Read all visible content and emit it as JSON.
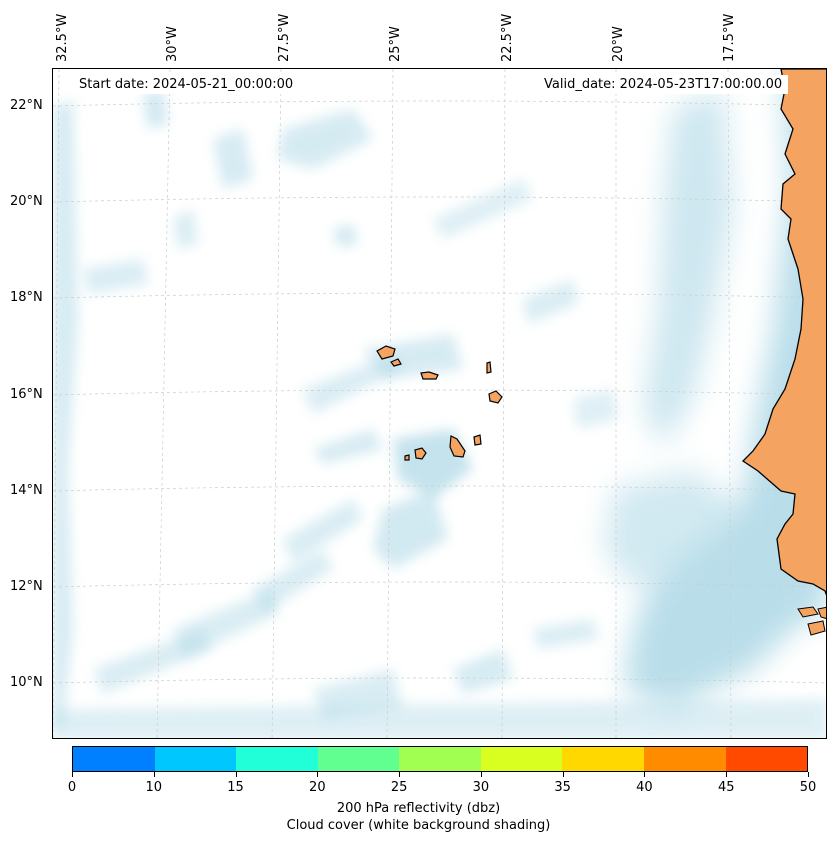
{
  "map": {
    "start_date_label": "Start date: 2024-05-21_00:00:00",
    "valid_date_label": "Valid_date: 2024-05-23T17:00:00.00",
    "longitude_labels": [
      "32.5°W",
      "30°W",
      "27.5°W",
      "25°W",
      "22.5°W",
      "20°W",
      "17.5°W"
    ],
    "latitude_labels": [
      "22°N",
      "20°N",
      "18°N",
      "16°N",
      "14°N",
      "12°N",
      "10°N"
    ],
    "land_color": "#f4a460",
    "cloud_color": "#add8e6",
    "grid_color": "#cccccc"
  },
  "colorbar": {
    "ticks": [
      "0",
      "10",
      "15",
      "20",
      "25",
      "30",
      "35",
      "40",
      "45",
      "50"
    ],
    "colors": [
      "#0080ff",
      "#00c8ff",
      "#20ffd8",
      "#60ff90",
      "#a0ff50",
      "#d8ff20",
      "#ffd800",
      "#ff8c00",
      "#ff4a00"
    ],
    "label_line1": "200 hPa reflectivity (dbz)",
    "label_line2": "Cloud cover (white background shading)"
  }
}
